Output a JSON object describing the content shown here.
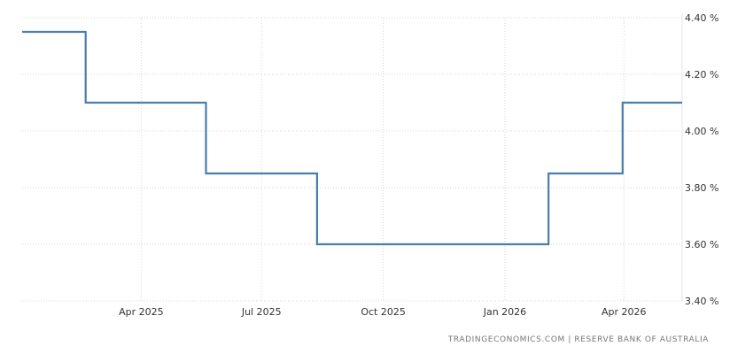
{
  "chart_data": {
    "type": "line",
    "step": true,
    "title": "",
    "xlabel": "",
    "ylabel": "",
    "y_unit": "%",
    "ylim": [
      3.4,
      4.4
    ],
    "yticks": [
      4.4,
      4.2,
      4.0,
      3.8,
      3.6,
      3.4
    ],
    "ytick_labels": [
      "4.40 %",
      "4.20 %",
      "4.00 %",
      "3.80 %",
      "3.60 %",
      "3.40 %"
    ],
    "xlim": [
      "2025-01-01",
      "2026-05-15"
    ],
    "xticks": [
      "2025-04-01",
      "2025-07-01",
      "2025-10-01",
      "2026-01-01",
      "2026-04-01"
    ],
    "xtick_labels": [
      "Apr 2025",
      "Jul 2025",
      "Oct 2025",
      "Jan 2026",
      "Apr 2026"
    ],
    "grid": true,
    "legend": "none",
    "y_axis_side": "right",
    "line_color": "#4a7eac",
    "series": [
      {
        "x": [
          "2025-01-01",
          "2025-02-18",
          "2025-05-20",
          "2025-08-12",
          "2026-02-03",
          "2026-03-31",
          "2026-05-15"
        ],
        "values": [
          4.35,
          4.1,
          3.85,
          3.6,
          3.85,
          4.1,
          4.1
        ]
      }
    ]
  },
  "source": "TRADINGECONOMICS.COM  |  RESERVE BANK OF AUSTRALIA"
}
